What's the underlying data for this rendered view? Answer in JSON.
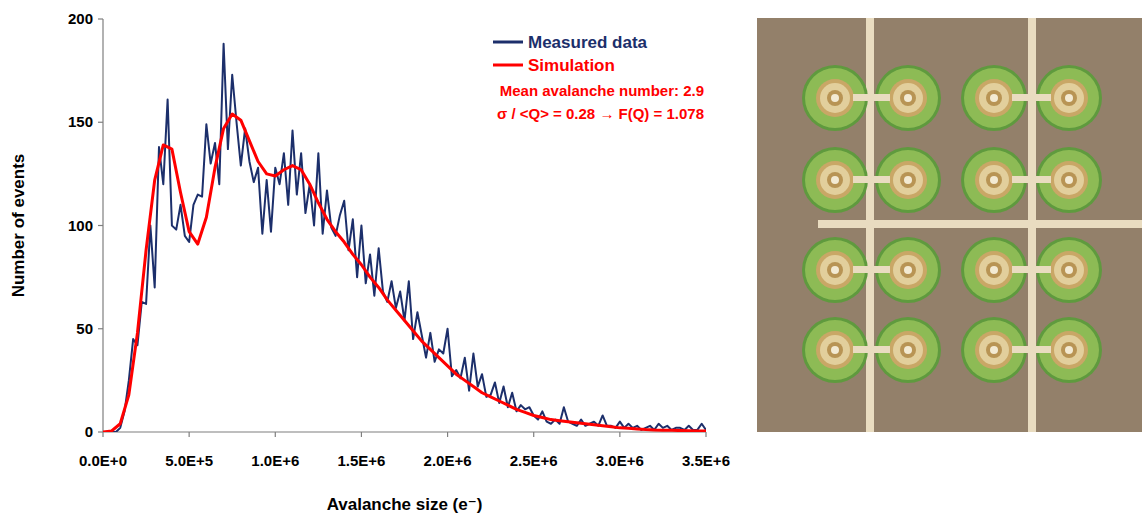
{
  "chart_data": {
    "type": "line",
    "x_label": "Avalanche size (e⁻)",
    "y_label": "Number of events",
    "xlim": [
      0,
      3500000
    ],
    "ylim": [
      0,
      200
    ],
    "xticks": [
      {
        "value": 0,
        "label": "0.0E+0"
      },
      {
        "value": 500000,
        "label": "5.0E+5"
      },
      {
        "value": 1000000,
        "label": "1.0E+6"
      },
      {
        "value": 1500000,
        "label": "1.5E+6"
      },
      {
        "value": 2000000,
        "label": "2.0E+6"
      },
      {
        "value": 2500000,
        "label": "2.5E+6"
      },
      {
        "value": 3000000,
        "label": "3.0E+6"
      },
      {
        "value": 3500000,
        "label": "3.5E+6"
      }
    ],
    "yticks": [
      0,
      50,
      100,
      150,
      200
    ],
    "grid": false,
    "legend": "top-right",
    "annotations": [
      "Mean avalanche number: 2.9",
      "σ / <Q> = 0.28 → F(Q) = 1.078"
    ],
    "series": [
      {
        "name": "Measured data",
        "color": "#1c2f6b",
        "line_style": "solid",
        "x": [
          0,
          25000,
          50000,
          75000,
          100000,
          125000,
          150000,
          175000,
          200000,
          225000,
          250000,
          275000,
          300000,
          325000,
          350000,
          375000,
          400000,
          425000,
          450000,
          475000,
          500000,
          525000,
          550000,
          575000,
          600000,
          625000,
          650000,
          675000,
          700000,
          725000,
          750000,
          775000,
          800000,
          825000,
          850000,
          875000,
          900000,
          925000,
          950000,
          975000,
          1000000,
          1025000,
          1050000,
          1075000,
          1100000,
          1125000,
          1150000,
          1175000,
          1200000,
          1225000,
          1250000,
          1275000,
          1300000,
          1325000,
          1350000,
          1375000,
          1400000,
          1425000,
          1450000,
          1475000,
          1500000,
          1525000,
          1550000,
          1575000,
          1600000,
          1625000,
          1650000,
          1675000,
          1700000,
          1725000,
          1750000,
          1775000,
          1800000,
          1825000,
          1850000,
          1875000,
          1900000,
          1925000,
          1950000,
          1975000,
          2000000,
          2025000,
          2050000,
          2075000,
          2100000,
          2125000,
          2150000,
          2175000,
          2200000,
          2225000,
          2250000,
          2275000,
          2300000,
          2325000,
          2350000,
          2375000,
          2400000,
          2425000,
          2450000,
          2475000,
          2500000,
          2525000,
          2550000,
          2575000,
          2600000,
          2625000,
          2650000,
          2675000,
          2700000,
          2725000,
          2750000,
          2775000,
          2800000,
          2825000,
          2850000,
          2875000,
          2900000,
          2925000,
          2950000,
          2975000,
          3000000,
          3025000,
          3050000,
          3075000,
          3100000,
          3125000,
          3150000,
          3175000,
          3200000,
          3225000,
          3250000,
          3275000,
          3300000,
          3325000,
          3350000,
          3375000,
          3400000,
          3425000,
          3450000,
          3475000,
          3500000
        ],
        "values": [
          0,
          0,
          0,
          0,
          2,
          10,
          25,
          45,
          42,
          63,
          62,
          100,
          70,
          138,
          120,
          161,
          100,
          98,
          110,
          95,
          92,
          110,
          115,
          114,
          149,
          130,
          140,
          120,
          188,
          137,
          173,
          150,
          129,
          147,
          131,
          121,
          128,
          96,
          122,
          97,
          128,
          120,
          135,
          110,
          146,
          115,
          135,
          106,
          120,
          100,
          135,
          96,
          117,
          99,
          95,
          105,
          112,
          88,
          103,
          75,
          100,
          72,
          86,
          66,
          89,
          68,
          63,
          73,
          60,
          68,
          54,
          73,
          45,
          58,
          47,
          36,
          48,
          34,
          40,
          38,
          50,
          27,
          30,
          26,
          36,
          20,
          38,
          22,
          28,
          17,
          18,
          24,
          14,
          22,
          12,
          19,
          10,
          13,
          11,
          12,
          8,
          6,
          10,
          5,
          4,
          6,
          4,
          12,
          5,
          4,
          3,
          6,
          3,
          4,
          5,
          3,
          8,
          3,
          3,
          2,
          5,
          2,
          4,
          2,
          3,
          1,
          2,
          3,
          1,
          4,
          2,
          3,
          1,
          2,
          2,
          1,
          3,
          1,
          1,
          4,
          1
        ]
      },
      {
        "name": "Simulation",
        "color": "#ff0000",
        "line_style": "solid",
        "x": [
          0,
          50000,
          100000,
          150000,
          200000,
          250000,
          300000,
          350000,
          400000,
          450000,
          500000,
          550000,
          600000,
          650000,
          700000,
          750000,
          800000,
          850000,
          900000,
          950000,
          1000000,
          1050000,
          1100000,
          1150000,
          1200000,
          1250000,
          1300000,
          1350000,
          1400000,
          1450000,
          1500000,
          1550000,
          1600000,
          1650000,
          1700000,
          1750000,
          1800000,
          1850000,
          1900000,
          1950000,
          2000000,
          2050000,
          2100000,
          2150000,
          2200000,
          2250000,
          2300000,
          2350000,
          2400000,
          2450000,
          2500000,
          2550000,
          2600000,
          2650000,
          2700000,
          2750000,
          2800000,
          2850000,
          2900000,
          2950000,
          3000000,
          3050000,
          3100000,
          3150000,
          3200000,
          3250000,
          3300000,
          3350000,
          3400000,
          3450000,
          3500000
        ],
        "values": [
          0,
          0.5,
          4,
          18,
          48,
          88,
          122,
          139,
          137,
          116,
          97,
          91,
          104,
          128,
          147,
          154,
          151,
          141,
          131,
          125,
          124,
          127,
          129,
          127,
          120,
          111,
          103,
          97,
          92,
          86,
          81,
          75,
          70,
          64,
          59,
          54,
          49,
          44,
          40,
          36,
          32,
          28,
          25,
          22,
          19,
          17,
          15,
          13,
          11,
          9.5,
          8,
          7,
          6,
          5.5,
          5,
          4.5,
          4,
          3.5,
          3,
          2.5,
          2,
          1.8,
          1.5,
          1.2,
          1,
          0.9,
          0.8,
          0.7,
          0.6,
          0.5,
          0.5
        ]
      }
    ]
  }
}
